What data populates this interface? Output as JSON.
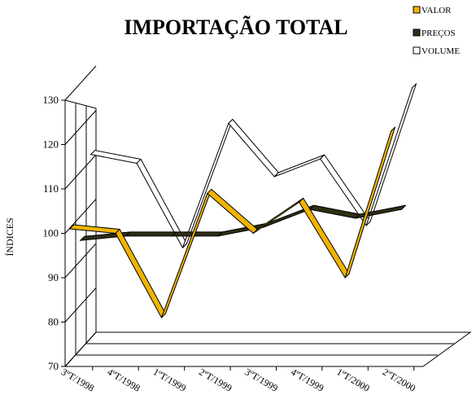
{
  "chart_data": {
    "type": "line",
    "title": "IMPORTAÇÃO TOTAL",
    "xlabel": "",
    "ylabel": "ÍNDICES",
    "categories": [
      "3ºT/1998",
      "4ºT/1998",
      "1ºT/1999",
      "2ºT/1999",
      "3ºT/1999",
      "4ºT/1999",
      "1ºT/2000",
      "2ºT/2000"
    ],
    "ylim": [
      70,
      130
    ],
    "yticks": [
      70,
      80,
      90,
      100,
      110,
      120,
      130
    ],
    "grid": false,
    "legend_position": "top-right",
    "series": [
      {
        "name": "VALOR",
        "color": "#f0b400",
        "values": [
          101,
          100,
          81,
          109,
          100,
          107,
          90,
          123
        ]
      },
      {
        "name": "PREÇOS",
        "color": "#2e2e14",
        "values": [
          96,
          97,
          97,
          97,
          99,
          103,
          101,
          103
        ]
      },
      {
        "name": "VOLUME",
        "color": "#ffffff",
        "values": [
          113,
          111,
          92,
          120,
          108,
          112,
          97,
          128
        ]
      }
    ]
  }
}
